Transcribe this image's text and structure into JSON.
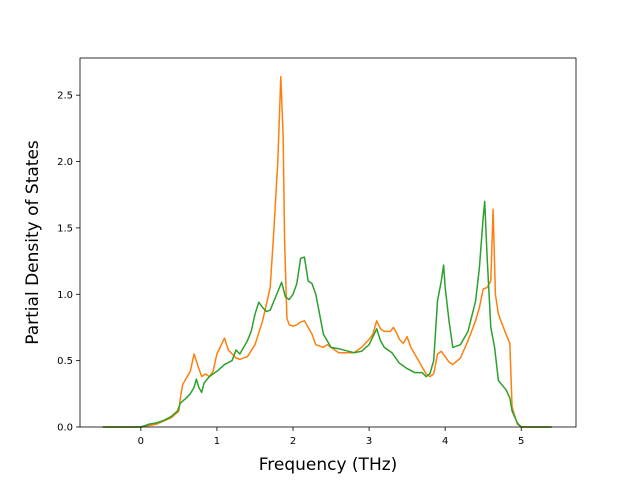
{
  "chart_data": {
    "type": "line",
    "title": "",
    "xlabel": "Frequency (THz)",
    "ylabel": "Partial Density of States",
    "xlim": [
      -0.8,
      5.72
    ],
    "ylim": [
      0,
      2.78
    ],
    "xticks": [
      "0",
      "1",
      "2",
      "3",
      "4",
      "5"
    ],
    "yticks": [
      "0.0",
      "0.5",
      "1.0",
      "1.5",
      "2.0",
      "2.5"
    ],
    "grid": false,
    "legend": "none",
    "series": [
      {
        "color": "#ff7f0e",
        "points": [
          [
            -0.5,
            0
          ],
          [
            0,
            0
          ],
          [
            0.2,
            0.02
          ],
          [
            0.4,
            0.07
          ],
          [
            0.5,
            0.12
          ],
          [
            0.52,
            0.22
          ],
          [
            0.55,
            0.32
          ],
          [
            0.65,
            0.42
          ],
          [
            0.7,
            0.55
          ],
          [
            0.75,
            0.46
          ],
          [
            0.8,
            0.38
          ],
          [
            0.85,
            0.4
          ],
          [
            0.9,
            0.38
          ],
          [
            0.95,
            0.42
          ],
          [
            1.0,
            0.55
          ],
          [
            1.1,
            0.67
          ],
          [
            1.15,
            0.58
          ],
          [
            1.25,
            0.52
          ],
          [
            1.3,
            0.51
          ],
          [
            1.4,
            0.53
          ],
          [
            1.5,
            0.62
          ],
          [
            1.6,
            0.8
          ],
          [
            1.7,
            1.05
          ],
          [
            1.75,
            1.5
          ],
          [
            1.8,
            2.0
          ],
          [
            1.84,
            2.64
          ],
          [
            1.87,
            2.2
          ],
          [
            1.89,
            1.4
          ],
          [
            1.92,
            0.82
          ],
          [
            1.95,
            0.77
          ],
          [
            2.0,
            0.76
          ],
          [
            2.05,
            0.77
          ],
          [
            2.1,
            0.79
          ],
          [
            2.15,
            0.8
          ],
          [
            2.2,
            0.75
          ],
          [
            2.25,
            0.7
          ],
          [
            2.3,
            0.62
          ],
          [
            2.4,
            0.6
          ],
          [
            2.45,
            0.62
          ],
          [
            2.5,
            0.6
          ],
          [
            2.6,
            0.56
          ],
          [
            2.8,
            0.56
          ],
          [
            2.9,
            0.6
          ],
          [
            3.0,
            0.66
          ],
          [
            3.05,
            0.7
          ],
          [
            3.1,
            0.8
          ],
          [
            3.15,
            0.74
          ],
          [
            3.2,
            0.72
          ],
          [
            3.28,
            0.72
          ],
          [
            3.32,
            0.75
          ],
          [
            3.35,
            0.72
          ],
          [
            3.4,
            0.66
          ],
          [
            3.45,
            0.63
          ],
          [
            3.5,
            0.68
          ],
          [
            3.55,
            0.6
          ],
          [
            3.6,
            0.55
          ],
          [
            3.7,
            0.45
          ],
          [
            3.75,
            0.4
          ],
          [
            3.8,
            0.38
          ],
          [
            3.85,
            0.4
          ],
          [
            3.9,
            0.55
          ],
          [
            3.95,
            0.57
          ],
          [
            4.0,
            0.53
          ],
          [
            4.05,
            0.49
          ],
          [
            4.1,
            0.47
          ],
          [
            4.2,
            0.52
          ],
          [
            4.3,
            0.65
          ],
          [
            4.4,
            0.8
          ],
          [
            4.45,
            0.9
          ],
          [
            4.5,
            1.04
          ],
          [
            4.55,
            1.05
          ],
          [
            4.6,
            1.1
          ],
          [
            4.63,
            1.64
          ],
          [
            4.66,
            1.0
          ],
          [
            4.7,
            0.85
          ],
          [
            4.8,
            0.7
          ],
          [
            4.85,
            0.63
          ],
          [
            4.88,
            0.15
          ],
          [
            4.95,
            0.02
          ],
          [
            5.0,
            0
          ],
          [
            5.4,
            0
          ]
        ]
      },
      {
        "color": "#2ca02c",
        "points": [
          [
            -0.5,
            0
          ],
          [
            0,
            0
          ],
          [
            0.1,
            0.02
          ],
          [
            0.2,
            0.03
          ],
          [
            0.3,
            0.05
          ],
          [
            0.4,
            0.08
          ],
          [
            0.48,
            0.12
          ],
          [
            0.52,
            0.18
          ],
          [
            0.6,
            0.22
          ],
          [
            0.65,
            0.25
          ],
          [
            0.7,
            0.3
          ],
          [
            0.73,
            0.36
          ],
          [
            0.76,
            0.3
          ],
          [
            0.8,
            0.26
          ],
          [
            0.83,
            0.33
          ],
          [
            0.9,
            0.38
          ],
          [
            1.0,
            0.42
          ],
          [
            1.1,
            0.47
          ],
          [
            1.2,
            0.5
          ],
          [
            1.25,
            0.58
          ],
          [
            1.3,
            0.55
          ],
          [
            1.35,
            0.6
          ],
          [
            1.4,
            0.65
          ],
          [
            1.45,
            0.72
          ],
          [
            1.5,
            0.85
          ],
          [
            1.55,
            0.94
          ],
          [
            1.6,
            0.9
          ],
          [
            1.65,
            0.87
          ],
          [
            1.7,
            0.88
          ],
          [
            1.75,
            0.95
          ],
          [
            1.8,
            1.02
          ],
          [
            1.85,
            1.09
          ],
          [
            1.9,
            0.98
          ],
          [
            1.95,
            0.96
          ],
          [
            2.0,
            1.0
          ],
          [
            2.05,
            1.08
          ],
          [
            2.1,
            1.27
          ],
          [
            2.15,
            1.28
          ],
          [
            2.2,
            1.1
          ],
          [
            2.25,
            1.08
          ],
          [
            2.3,
            1.0
          ],
          [
            2.35,
            0.85
          ],
          [
            2.4,
            0.7
          ],
          [
            2.45,
            0.65
          ],
          [
            2.5,
            0.6
          ],
          [
            2.6,
            0.59
          ],
          [
            2.8,
            0.56
          ],
          [
            2.9,
            0.57
          ],
          [
            3.0,
            0.62
          ],
          [
            3.05,
            0.68
          ],
          [
            3.1,
            0.74
          ],
          [
            3.15,
            0.65
          ],
          [
            3.2,
            0.6
          ],
          [
            3.3,
            0.56
          ],
          [
            3.4,
            0.48
          ],
          [
            3.5,
            0.44
          ],
          [
            3.6,
            0.41
          ],
          [
            3.7,
            0.41
          ],
          [
            3.75,
            0.38
          ],
          [
            3.8,
            0.4
          ],
          [
            3.85,
            0.5
          ],
          [
            3.9,
            0.95
          ],
          [
            3.95,
            1.1
          ],
          [
            3.98,
            1.22
          ],
          [
            4.0,
            1.05
          ],
          [
            4.05,
            0.8
          ],
          [
            4.1,
            0.6
          ],
          [
            4.2,
            0.62
          ],
          [
            4.3,
            0.72
          ],
          [
            4.4,
            0.95
          ],
          [
            4.45,
            1.2
          ],
          [
            4.5,
            1.58
          ],
          [
            4.52,
            1.7
          ],
          [
            4.55,
            1.3
          ],
          [
            4.6,
            0.75
          ],
          [
            4.65,
            0.6
          ],
          [
            4.7,
            0.35
          ],
          [
            4.8,
            0.28
          ],
          [
            4.85,
            0.22
          ],
          [
            4.88,
            0.12
          ],
          [
            4.95,
            0.03
          ],
          [
            5.0,
            0
          ],
          [
            5.4,
            0
          ]
        ]
      }
    ]
  }
}
